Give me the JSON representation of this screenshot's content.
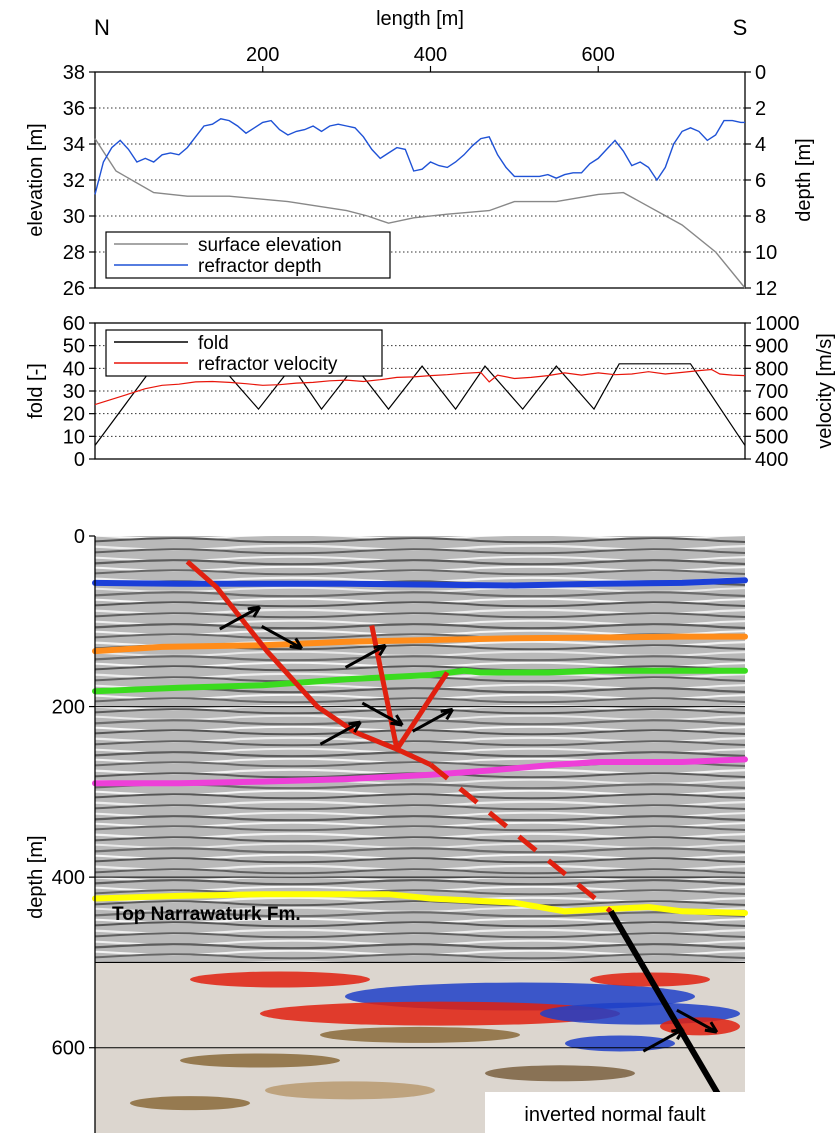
{
  "chart_data": [
    {
      "type": "line",
      "panel": "elevation-depth",
      "left_end_label": "N",
      "right_end_label": "S",
      "xlabel": "length [m]",
      "xlim": [
        0,
        775
      ],
      "xticks": [
        200,
        400,
        600
      ],
      "ylabel_left": "elevation [m]",
      "ylim_left": [
        26,
        38
      ],
      "yticks_left": [
        26,
        28,
        30,
        32,
        34,
        36,
        38
      ],
      "ylabel_right": "depth [m]",
      "ylim_right": [
        0,
        12
      ],
      "yticks_right": [
        0,
        2,
        4,
        6,
        8,
        10,
        12
      ],
      "right_axis_inverted": true,
      "grid": "horizontal dotted",
      "legend_placement": "bottom-left",
      "series": [
        {
          "name": "surface elevation",
          "axis": "left",
          "color": "#888888",
          "x": [
            0,
            25,
            70,
            110,
            160,
            230,
            300,
            325,
            350,
            380,
            420,
            470,
            500,
            550,
            600,
            630,
            700,
            740,
            775
          ],
          "y": [
            34.3,
            32.5,
            31.3,
            31.1,
            31.1,
            30.8,
            30.3,
            30.0,
            29.6,
            29.9,
            30.1,
            30.3,
            30.8,
            30.8,
            31.2,
            31.3,
            29.5,
            28.0,
            26.0
          ]
        },
        {
          "name": "refractor depth",
          "axis": "right",
          "color": "#1f52d6",
          "x": [
            0,
            10,
            20,
            30,
            40,
            50,
            60,
            70,
            80,
            90,
            100,
            110,
            120,
            130,
            140,
            150,
            160,
            170,
            180,
            190,
            200,
            210,
            220,
            230,
            240,
            250,
            260,
            270,
            280,
            290,
            300,
            310,
            320,
            330,
            340,
            350,
            360,
            370,
            380,
            390,
            400,
            410,
            420,
            430,
            440,
            450,
            460,
            470,
            480,
            490,
            500,
            510,
            520,
            530,
            540,
            550,
            560,
            570,
            580,
            590,
            600,
            610,
            620,
            630,
            640,
            650,
            660,
            670,
            680,
            690,
            700,
            710,
            720,
            730,
            740,
            750,
            760,
            770,
            775
          ],
          "y": [
            6.8,
            5.0,
            4.2,
            3.8,
            4.3,
            5.0,
            4.8,
            5.0,
            4.6,
            4.5,
            4.6,
            4.2,
            3.6,
            3.0,
            2.9,
            2.6,
            2.7,
            3.0,
            3.4,
            3.1,
            2.8,
            2.7,
            3.2,
            3.5,
            3.3,
            3.2,
            3.0,
            3.3,
            3.0,
            2.9,
            3.0,
            3.1,
            3.6,
            4.3,
            4.8,
            4.5,
            4.2,
            4.3,
            5.5,
            5.4,
            5.0,
            5.2,
            5.3,
            5.0,
            4.6,
            4.1,
            3.7,
            3.6,
            4.6,
            5.3,
            5.8,
            5.8,
            5.8,
            5.8,
            5.7,
            5.9,
            5.7,
            5.6,
            5.6,
            5.1,
            4.8,
            4.3,
            3.8,
            4.4,
            5.2,
            5.0,
            5.3,
            6.0,
            5.3,
            4.0,
            3.3,
            3.1,
            3.3,
            3.8,
            3.5,
            2.7,
            2.7,
            2.8,
            2.8
          ]
        }
      ]
    },
    {
      "type": "line",
      "panel": "fold-velocity",
      "xlim": [
        0,
        775
      ],
      "ylabel_left": "fold [-]",
      "ylim_left": [
        0,
        60
      ],
      "yticks_left": [
        0,
        10,
        20,
        30,
        40,
        50,
        60
      ],
      "ylabel_right": "velocity [m/s]",
      "ylim_right": [
        400,
        1000
      ],
      "yticks_right": [
        400,
        500,
        600,
        700,
        800,
        900,
        1000
      ],
      "grid": "horizontal dotted",
      "legend_placement": "top-left",
      "series": [
        {
          "name": "fold",
          "axis": "left",
          "color": "#000000",
          "x": [
            0,
            70,
            150,
            195,
            235,
            270,
            310,
            350,
            390,
            430,
            465,
            510,
            550,
            595,
            625,
            710,
            775
          ],
          "y": [
            6,
            41,
            41,
            22,
            41,
            22,
            41,
            22,
            41,
            22,
            41,
            22,
            41,
            22,
            42,
            42,
            6
          ]
        },
        {
          "name": "refractor velocity",
          "axis": "right",
          "color": "#e8150a",
          "x": [
            0,
            30,
            60,
            80,
            100,
            120,
            140,
            160,
            180,
            200,
            220,
            240,
            260,
            280,
            300,
            320,
            340,
            360,
            380,
            400,
            420,
            440,
            460,
            470,
            480,
            500,
            520,
            540,
            560,
            580,
            600,
            620,
            640,
            660,
            680,
            700,
            720,
            735,
            745,
            760,
            775
          ],
          "y": [
            640,
            675,
            710,
            725,
            730,
            740,
            742,
            738,
            732,
            725,
            728,
            735,
            738,
            745,
            748,
            742,
            750,
            760,
            762,
            768,
            772,
            778,
            782,
            740,
            770,
            755,
            760,
            768,
            780,
            770,
            780,
            772,
            775,
            785,
            775,
            782,
            790,
            795,
            775,
            770,
            768
          ]
        }
      ]
    },
    {
      "type": "image",
      "panel": "seismic-section",
      "ylabel": "depth [m]",
      "ylim": [
        0,
        700
      ],
      "yticks": [
        0,
        200,
        400,
        600
      ],
      "grid": "horizontal solid",
      "horizons": [
        {
          "color": "#1b3fd8",
          "x": [
            0,
            100,
            200,
            300,
            400,
            500,
            600,
            700,
            775
          ],
          "depth": [
            55,
            56,
            56,
            56,
            57,
            58,
            56,
            55,
            52
          ]
        },
        {
          "color": "#ff8c1a",
          "x": [
            0,
            80,
            200,
            300,
            400,
            500,
            600,
            700,
            775
          ],
          "depth": [
            135,
            130,
            128,
            124,
            122,
            120,
            119,
            118,
            118
          ]
        },
        {
          "color": "#3adb1e",
          "x": [
            0,
            100,
            200,
            300,
            400,
            440,
            460,
            540,
            600,
            700,
            775
          ],
          "depth": [
            182,
            178,
            175,
            168,
            163,
            158,
            160,
            160,
            158,
            158,
            158
          ]
        },
        {
          "color": "#ee3fd8",
          "x": [
            0,
            100,
            200,
            300,
            400,
            470,
            550,
            600,
            700,
            775
          ],
          "depth": [
            290,
            290,
            288,
            285,
            280,
            275,
            268,
            265,
            265,
            262
          ]
        },
        {
          "color": "#ffff00",
          "x": [
            0,
            100,
            200,
            300,
            350,
            400,
            500,
            560,
            600,
            660,
            700,
            775
          ],
          "depth": [
            425,
            422,
            420,
            420,
            420,
            425,
            430,
            440,
            438,
            435,
            440,
            442
          ]
        }
      ],
      "horizon_label": "Top Narrawaturk Fm.",
      "annotation": "inverted normal fault"
    }
  ]
}
